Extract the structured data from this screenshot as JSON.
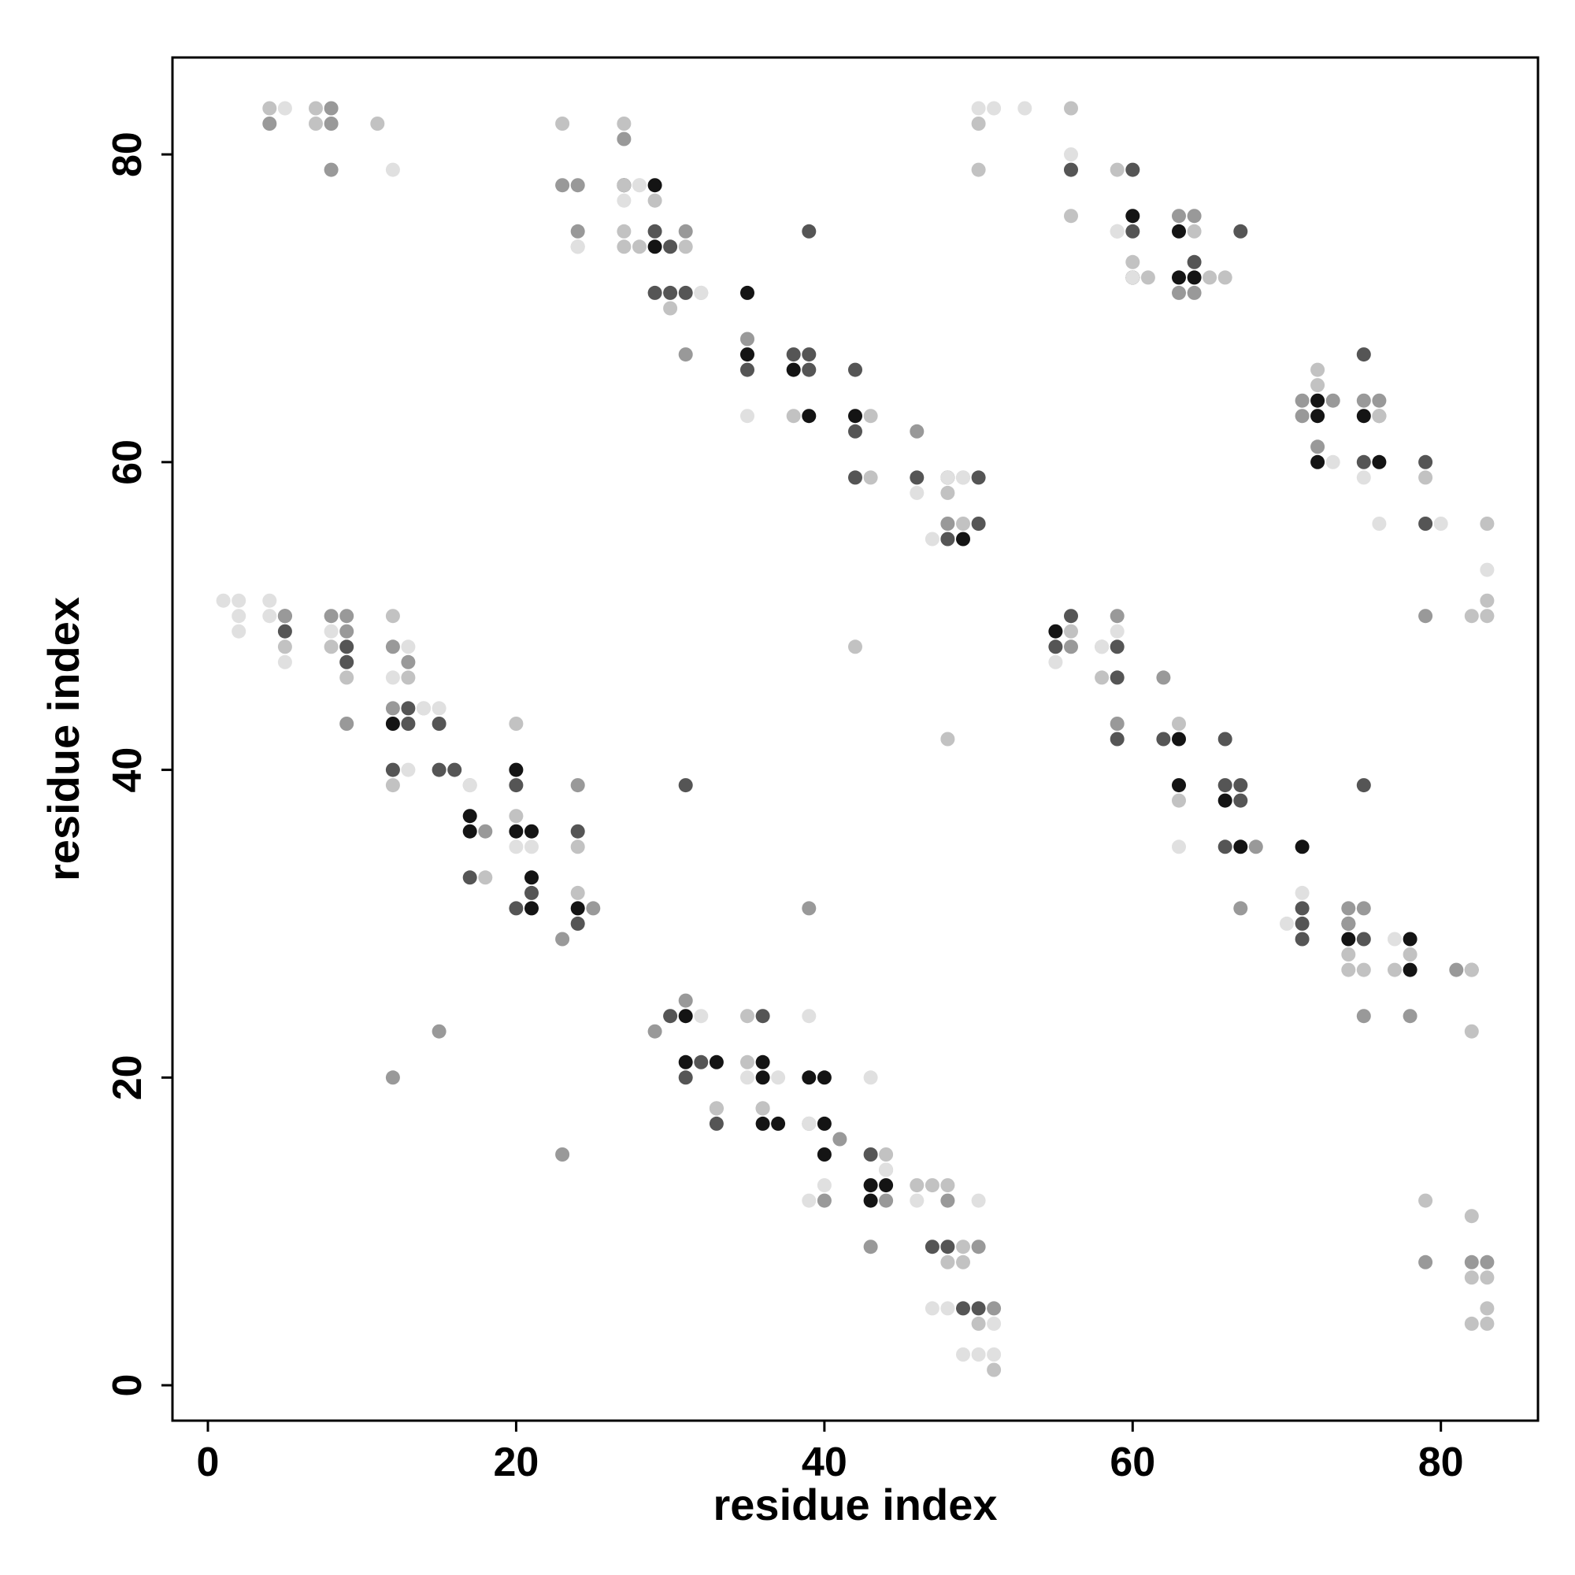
{
  "chart_data": {
    "type": "scatter",
    "xlabel": "residue index",
    "ylabel": "residue index",
    "xlim": [
      -2.3,
      86.3
    ],
    "ylim": [
      -2.3,
      86.3
    ],
    "x_ticks": [
      0,
      20,
      40,
      60,
      80
    ],
    "y_ticks": [
      0,
      20,
      40,
      60,
      80
    ],
    "grid": false,
    "legend": "none",
    "series": [
      {
        "color": "#141414",
        "points": [
          [
            12,
            43
          ],
          [
            17,
            37
          ],
          [
            17,
            36
          ],
          [
            20,
            40
          ],
          [
            20,
            36
          ],
          [
            21,
            36
          ],
          [
            21,
            33
          ],
          [
            21,
            31
          ],
          [
            24,
            31
          ],
          [
            27,
            78
          ],
          [
            29,
            78
          ],
          [
            29,
            74
          ],
          [
            31,
            24
          ],
          [
            31,
            21
          ],
          [
            33,
            21
          ],
          [
            35,
            71
          ],
          [
            35,
            67
          ],
          [
            36,
            21
          ],
          [
            36,
            20
          ],
          [
            36,
            17
          ],
          [
            37,
            17
          ],
          [
            38,
            66
          ],
          [
            39,
            63
          ],
          [
            39,
            20
          ],
          [
            40,
            20
          ],
          [
            40,
            17
          ],
          [
            40,
            15
          ],
          [
            42,
            63
          ],
          [
            43,
            13
          ],
          [
            43,
            12
          ],
          [
            44,
            13
          ],
          [
            49,
            55
          ],
          [
            55,
            49
          ],
          [
            60,
            76
          ],
          [
            60,
            72
          ],
          [
            63,
            75
          ],
          [
            63,
            72
          ],
          [
            63,
            42
          ],
          [
            63,
            39
          ],
          [
            64,
            72
          ],
          [
            66,
            38
          ],
          [
            67,
            35
          ],
          [
            71,
            35
          ],
          [
            72,
            64
          ],
          [
            72,
            63
          ],
          [
            72,
            60
          ],
          [
            74,
            29
          ],
          [
            75,
            63
          ],
          [
            76,
            60
          ],
          [
            78,
            29
          ],
          [
            78,
            27
          ]
        ]
      },
      {
        "color": "#555555",
        "points": [
          [
            5,
            50
          ],
          [
            5,
            49
          ],
          [
            9,
            48
          ],
          [
            9,
            47
          ],
          [
            12,
            40
          ],
          [
            13,
            44
          ],
          [
            13,
            43
          ],
          [
            15,
            43
          ],
          [
            15,
            40
          ],
          [
            16,
            40
          ],
          [
            17,
            33
          ],
          [
            20,
            39
          ],
          [
            20,
            31
          ],
          [
            21,
            32
          ],
          [
            24,
            36
          ],
          [
            24,
            30
          ],
          [
            29,
            75
          ],
          [
            29,
            71
          ],
          [
            30,
            74
          ],
          [
            30,
            71
          ],
          [
            30,
            24
          ],
          [
            31,
            71
          ],
          [
            31,
            39
          ],
          [
            31,
            20
          ],
          [
            32,
            21
          ],
          [
            33,
            17
          ],
          [
            35,
            66
          ],
          [
            36,
            24
          ],
          [
            38,
            67
          ],
          [
            39,
            67
          ],
          [
            39,
            66
          ],
          [
            39,
            75
          ],
          [
            42,
            66
          ],
          [
            42,
            62
          ],
          [
            42,
            59
          ],
          [
            43,
            15
          ],
          [
            46,
            59
          ],
          [
            47,
            9
          ],
          [
            48,
            59
          ],
          [
            48,
            55
          ],
          [
            48,
            9
          ],
          [
            49,
            5
          ],
          [
            50,
            59
          ],
          [
            50,
            56
          ],
          [
            50,
            5
          ],
          [
            55,
            48
          ],
          [
            56,
            79
          ],
          [
            56,
            50
          ],
          [
            59,
            48
          ],
          [
            59,
            46
          ],
          [
            59,
            42
          ],
          [
            60,
            79
          ],
          [
            60,
            75
          ],
          [
            62,
            42
          ],
          [
            64,
            73
          ],
          [
            66,
            42
          ],
          [
            66,
            39
          ],
          [
            66,
            35
          ],
          [
            67,
            39
          ],
          [
            67,
            38
          ],
          [
            67,
            75
          ],
          [
            71,
            31
          ],
          [
            71,
            30
          ],
          [
            71,
            29
          ],
          [
            74,
            30
          ],
          [
            75,
            67
          ],
          [
            75,
            60
          ],
          [
            75,
            39
          ],
          [
            75,
            29
          ],
          [
            79,
            60
          ],
          [
            79,
            56
          ]
        ]
      },
      {
        "color": "#999999",
        "points": [
          [
            4,
            82
          ],
          [
            5,
            50
          ],
          [
            8,
            79
          ],
          [
            8,
            83
          ],
          [
            8,
            82
          ],
          [
            8,
            50
          ],
          [
            9,
            50
          ],
          [
            9,
            49
          ],
          [
            9,
            43
          ],
          [
            12,
            48
          ],
          [
            12,
            44
          ],
          [
            13,
            47
          ],
          [
            18,
            36
          ],
          [
            15,
            23
          ],
          [
            23,
            29
          ],
          [
            23,
            15
          ],
          [
            24,
            75
          ],
          [
            24,
            78
          ],
          [
            23,
            78
          ],
          [
            27,
            81
          ],
          [
            29,
            23
          ],
          [
            31,
            25
          ],
          [
            31,
            75
          ],
          [
            31,
            67
          ],
          [
            33,
            18
          ],
          [
            35,
            68
          ],
          [
            36,
            18
          ],
          [
            39,
            31
          ],
          [
            41,
            16
          ],
          [
            40,
            12
          ],
          [
            43,
            9
          ],
          [
            44,
            12
          ],
          [
            46,
            62
          ],
          [
            48,
            56
          ],
          [
            48,
            12
          ],
          [
            50,
            9
          ],
          [
            51,
            5
          ],
          [
            56,
            48
          ],
          [
            59,
            50
          ],
          [
            59,
            43
          ],
          [
            62,
            46
          ],
          [
            63,
            71
          ],
          [
            64,
            76
          ],
          [
            64,
            71
          ],
          [
            63,
            76
          ],
          [
            67,
            31
          ],
          [
            68,
            35
          ],
          [
            71,
            64
          ],
          [
            71,
            63
          ],
          [
            72,
            61
          ],
          [
            73,
            64
          ],
          [
            74,
            31
          ],
          [
            74,
            30
          ],
          [
            75,
            31
          ],
          [
            75,
            24
          ],
          [
            78,
            24
          ],
          [
            79,
            50
          ],
          [
            79,
            8
          ],
          [
            82,
            8
          ],
          [
            83,
            8
          ],
          [
            82,
            27
          ],
          [
            81,
            27
          ],
          [
            76,
            64
          ],
          [
            76,
            63
          ],
          [
            75,
            64
          ],
          [
            24,
            39
          ],
          [
            25,
            31
          ],
          [
            12,
            20
          ],
          [
            39,
            17
          ]
        ]
      },
      {
        "color": "#c2c2c2",
        "points": [
          [
            4,
            83
          ],
          [
            7,
            83
          ],
          [
            7,
            82
          ],
          [
            11,
            82
          ],
          [
            23,
            82
          ],
          [
            27,
            82
          ],
          [
            24,
            74
          ],
          [
            27,
            75
          ],
          [
            27,
            74
          ],
          [
            28,
            74
          ],
          [
            29,
            77
          ],
          [
            31,
            74
          ],
          [
            30,
            70
          ],
          [
            5,
            48
          ],
          [
            8,
            48
          ],
          [
            9,
            46
          ],
          [
            12,
            50
          ],
          [
            13,
            46
          ],
          [
            12,
            39
          ],
          [
            14,
            44
          ],
          [
            17,
            39
          ],
          [
            18,
            33
          ],
          [
            20,
            37
          ],
          [
            24,
            35
          ],
          [
            24,
            32
          ],
          [
            20,
            43
          ],
          [
            27,
            78
          ],
          [
            32,
            71
          ],
          [
            33,
            18
          ],
          [
            35,
            24
          ],
          [
            35,
            21
          ],
          [
            36,
            18
          ],
          [
            38,
            63
          ],
          [
            43,
            63
          ],
          [
            43,
            59
          ],
          [
            44,
            15
          ],
          [
            44,
            14
          ],
          [
            46,
            13
          ],
          [
            47,
            13
          ],
          [
            48,
            13
          ],
          [
            49,
            9
          ],
          [
            49,
            8
          ],
          [
            49,
            56
          ],
          [
            48,
            58
          ],
          [
            49,
            59
          ],
          [
            50,
            82
          ],
          [
            50,
            79
          ],
          [
            56,
            76
          ],
          [
            56,
            83
          ],
          [
            56,
            49
          ],
          [
            58,
            48
          ],
          [
            59,
            79
          ],
          [
            59,
            75
          ],
          [
            60,
            73
          ],
          [
            61,
            72
          ],
          [
            64,
            75
          ],
          [
            65,
            72
          ],
          [
            66,
            72
          ],
          [
            58,
            46
          ],
          [
            63,
            43
          ],
          [
            63,
            38
          ],
          [
            72,
            65
          ],
          [
            72,
            66
          ],
          [
            76,
            63
          ],
          [
            78,
            28
          ],
          [
            77,
            27
          ],
          [
            79,
            59
          ],
          [
            74,
            28
          ],
          [
            74,
            27
          ],
          [
            75,
            27
          ],
          [
            82,
            27
          ],
          [
            83,
            56
          ],
          [
            83,
            51
          ],
          [
            83,
            50
          ],
          [
            82,
            50
          ],
          [
            82,
            7
          ],
          [
            83,
            7
          ],
          [
            82,
            11
          ],
          [
            82,
            4
          ],
          [
            83,
            4
          ],
          [
            50,
            4
          ],
          [
            48,
            8
          ],
          [
            51,
            1
          ],
          [
            83,
            5
          ],
          [
            79,
            12
          ],
          [
            42,
            48
          ],
          [
            48,
            42
          ],
          [
            82,
            23
          ]
        ]
      },
      {
        "color": "#e0e0e0",
        "points": [
          [
            1,
            51
          ],
          [
            2,
            51
          ],
          [
            2,
            50
          ],
          [
            2,
            49
          ],
          [
            4,
            51
          ],
          [
            4,
            50
          ],
          [
            5,
            47
          ],
          [
            5,
            83
          ],
          [
            8,
            49
          ],
          [
            12,
            79
          ],
          [
            12,
            46
          ],
          [
            13,
            48
          ],
          [
            13,
            40
          ],
          [
            14,
            44
          ],
          [
            15,
            44
          ],
          [
            17,
            39
          ],
          [
            20,
            35
          ],
          [
            21,
            35
          ],
          [
            24,
            74
          ],
          [
            27,
            77
          ],
          [
            28,
            78
          ],
          [
            32,
            24
          ],
          [
            32,
            71
          ],
          [
            35,
            63
          ],
          [
            37,
            20
          ],
          [
            35,
            20
          ],
          [
            39,
            24
          ],
          [
            39,
            17
          ],
          [
            40,
            13
          ],
          [
            43,
            20
          ],
          [
            46,
            12
          ],
          [
            46,
            58
          ],
          [
            47,
            55
          ],
          [
            48,
            59
          ],
          [
            49,
            59
          ],
          [
            50,
            83
          ],
          [
            51,
            83
          ],
          [
            53,
            83
          ],
          [
            55,
            47
          ],
          [
            56,
            80
          ],
          [
            58,
            48
          ],
          [
            59,
            49
          ],
          [
            59,
            75
          ],
          [
            60,
            72
          ],
          [
            63,
            35
          ],
          [
            70,
            30
          ],
          [
            71,
            32
          ],
          [
            73,
            60
          ],
          [
            75,
            59
          ],
          [
            76,
            56
          ],
          [
            77,
            29
          ],
          [
            80,
            56
          ],
          [
            83,
            53
          ],
          [
            49,
            2
          ],
          [
            50,
            2
          ],
          [
            51,
            2
          ],
          [
            51,
            4
          ],
          [
            47,
            5
          ],
          [
            50,
            12
          ],
          [
            48,
            5
          ],
          [
            44,
            14
          ],
          [
            39,
            12
          ],
          [
            28,
            78
          ]
        ]
      }
    ]
  }
}
